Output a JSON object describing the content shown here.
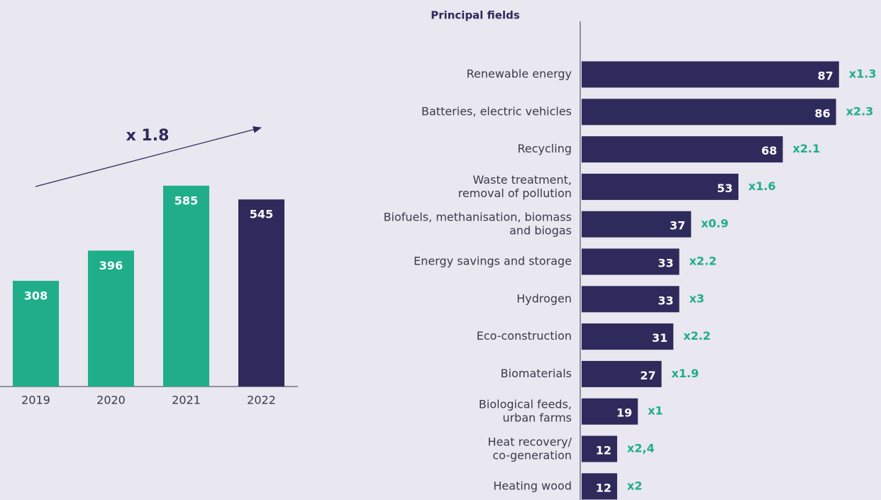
{
  "chart_data": [
    {
      "type": "bar",
      "categories": [
        "2019",
        "2020",
        "2021",
        "2022"
      ],
      "values": [
        308,
        396,
        585,
        545
      ],
      "colors": [
        "#1fae89",
        "#1fae89",
        "#1fae89",
        "#2e2a5b"
      ],
      "annotation": "x 1.8"
    },
    {
      "type": "barh",
      "title": "Principal fields",
      "categories": [
        "Renewable energy",
        "Batteries, electric vehicles",
        "Recycling",
        "Waste treatment,\nremoval of pollution",
        "Biofuels, methanisation, biomass\nand biogas",
        "Energy savings and storage",
        "Hydrogen",
        "Eco-construction",
        "Biomaterials",
        "Biological feeds,\nurban farms",
        "Heat recovery/\nco-generation",
        "Heating wood"
      ],
      "values": [
        87,
        86,
        68,
        53,
        37,
        33,
        33,
        31,
        27,
        19,
        12,
        12
      ],
      "annotations": [
        "x1.3",
        "x2.3",
        "x2.1",
        "x1.6",
        "x0.9",
        "x2.2",
        "x3",
        "x2.2",
        "x1.9",
        "x1",
        "x2,4",
        "x2"
      ],
      "color": "#2e2a5b"
    }
  ]
}
